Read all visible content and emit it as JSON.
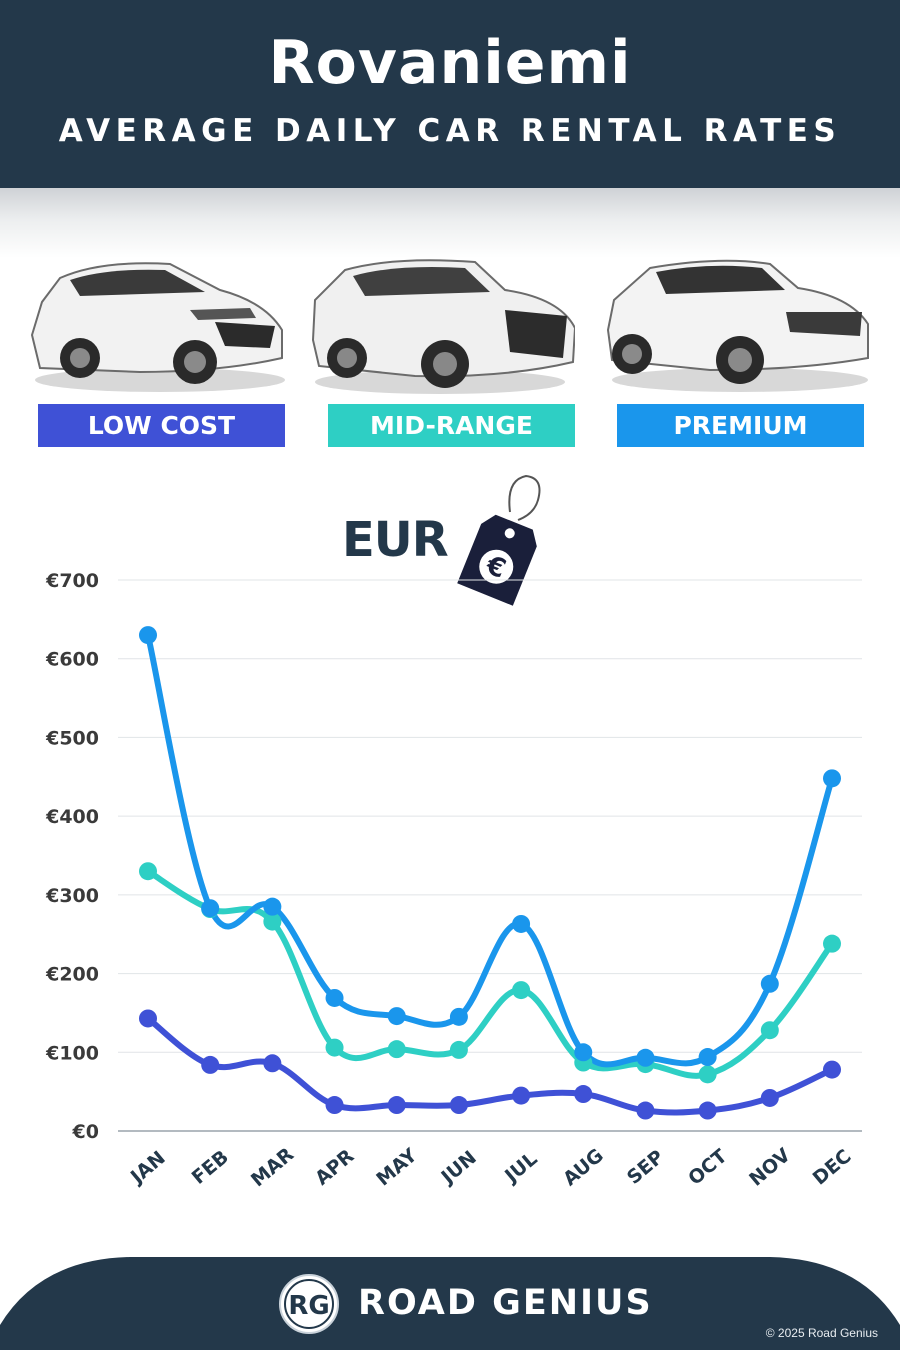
{
  "header": {
    "city": "Rovaniemi",
    "subtitle": "AVERAGE DAILY CAR RENTAL RATES"
  },
  "categories": [
    {
      "label": "LOW COST",
      "color": "#3f51d6"
    },
    {
      "label": "MID-RANGE",
      "color": "#2ecfc4"
    },
    {
      "label": "PREMIUM",
      "color": "#1a96ec"
    }
  ],
  "currency": {
    "label": "EUR",
    "icon": "euro-price-tag-icon",
    "symbol": "€"
  },
  "chart_data": {
    "type": "line",
    "categories": [
      "JAN",
      "FEB",
      "MAR",
      "APR",
      "MAY",
      "JUN",
      "JUL",
      "AUG",
      "SEP",
      "OCT",
      "NOV",
      "DEC"
    ],
    "series": [
      {
        "name": "LOW COST",
        "color": "#3f51d6",
        "values": [
          143,
          84,
          86,
          33,
          33,
          33,
          45,
          47,
          26,
          26,
          42,
          78
        ]
      },
      {
        "name": "MID-RANGE",
        "color": "#2ecfc4",
        "values": [
          330,
          282,
          266,
          106,
          104,
          103,
          179,
          87,
          85,
          72,
          128,
          238
        ]
      },
      {
        "name": "PREMIUM",
        "color": "#1a96ec",
        "values": [
          630,
          283,
          285,
          169,
          146,
          145,
          263,
          100,
          93,
          94,
          187,
          448
        ]
      }
    ],
    "yticks": [
      "€0",
      "€100",
      "€200",
      "€300",
      "€400",
      "€500",
      "€600",
      "€700"
    ],
    "ylim": [
      0,
      700
    ],
    "grid": true
  },
  "footer": {
    "logo_text": "RG",
    "brand": "ROAD GENIUS",
    "copyright": "© 2025 Road Genius"
  }
}
